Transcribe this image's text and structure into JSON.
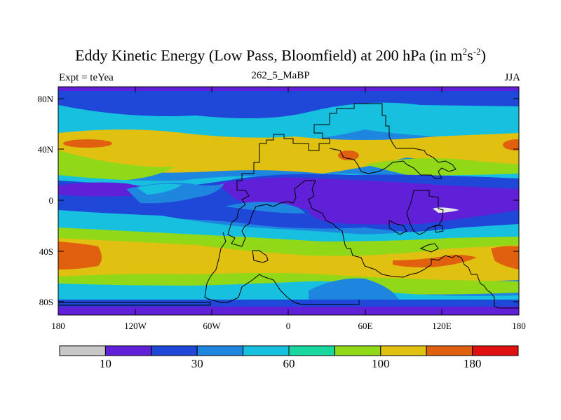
{
  "title": {
    "main": "Eddy Kinetic Energy (Low Pass, Bloomfield) at 200 hPa (in m",
    "sup1": "2",
    "mid": "s",
    "sup2": "-2",
    "end": ")"
  },
  "subtitle": {
    "left": "Expt = teYea",
    "center": "262_5_MaBP",
    "right": "JJA"
  },
  "axes": {
    "x_ticks": [
      "180",
      "120W",
      "60W",
      "0",
      "60E",
      "120E",
      "180"
    ],
    "y_ticks": [
      "80N",
      "40N",
      "0",
      "40S",
      "80S"
    ]
  },
  "colorbar": {
    "colors": [
      "#c8c8c8",
      "#6020d8",
      "#1f48d8",
      "#1f86e0",
      "#18c0e0",
      "#18d8a0",
      "#90d818",
      "#e0c010",
      "#e06010",
      "#e01010"
    ],
    "labels": [
      {
        "text": "10",
        "boundary": 1
      },
      {
        "text": "30",
        "boundary": 3
      },
      {
        "text": "60",
        "boundary": 5
      },
      {
        "text": "100",
        "boundary": 7
      },
      {
        "text": "180",
        "boundary": 9
      }
    ]
  }
}
